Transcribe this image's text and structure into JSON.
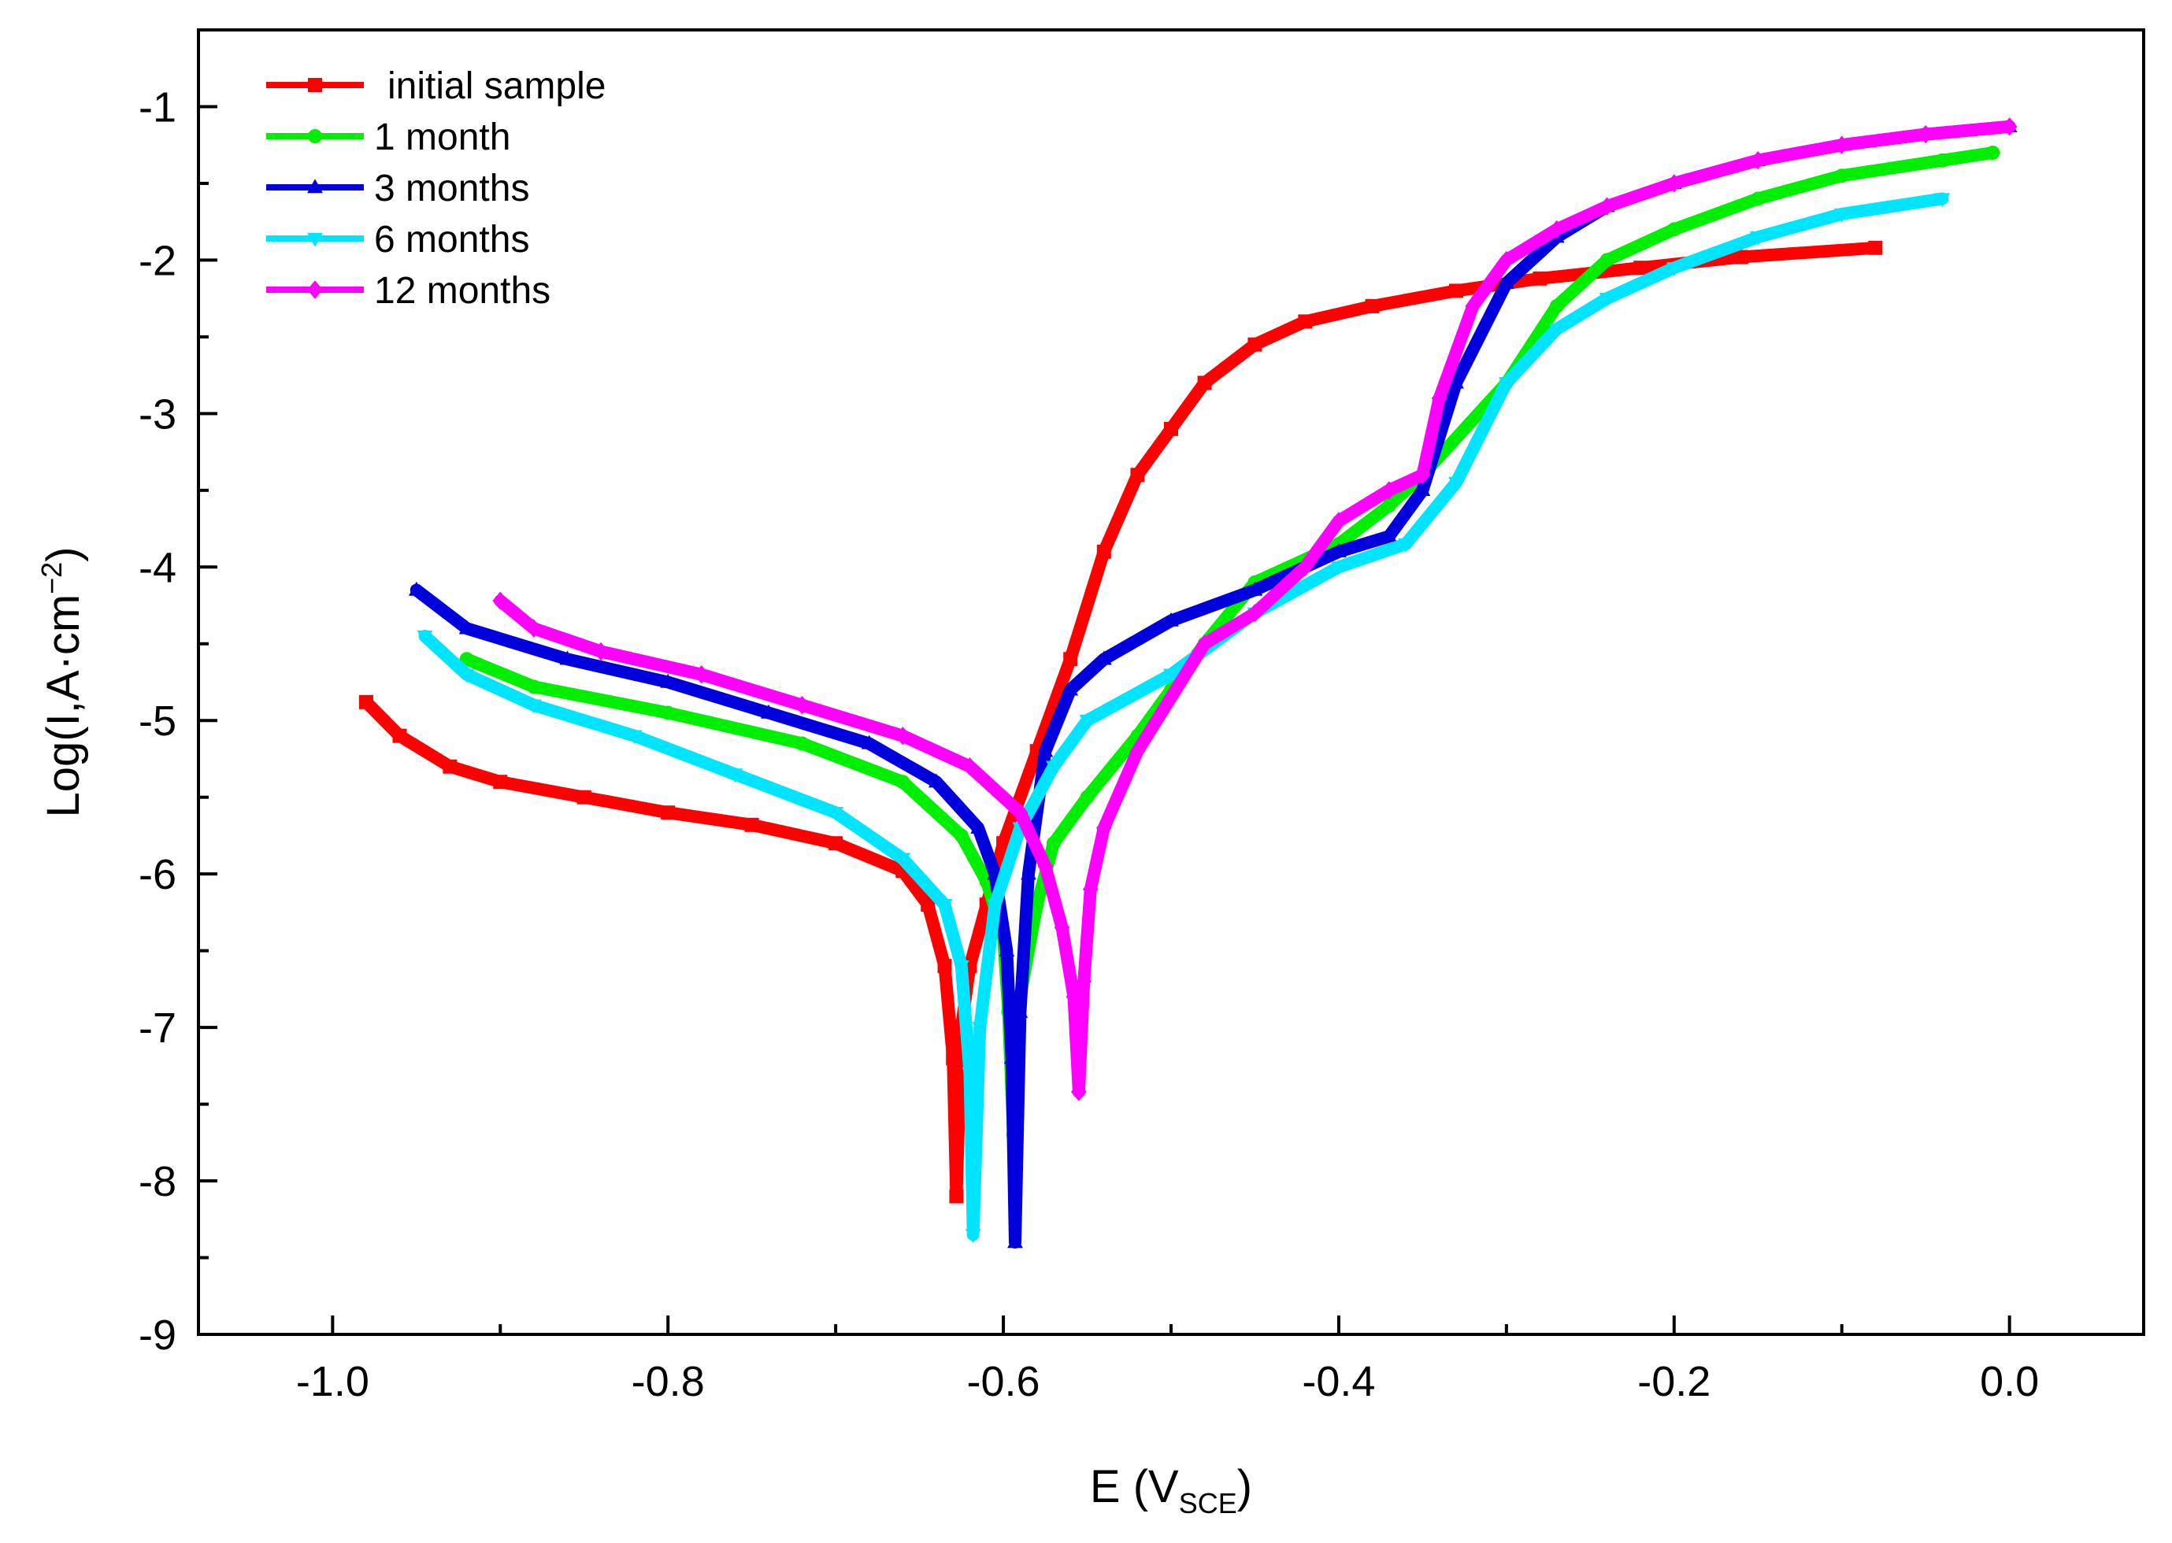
{
  "chart_data": {
    "type": "line",
    "title": "",
    "xlabel": "E (V",
    "xlabel_sub": "SCE",
    "xlabel_close": ")",
    "ylabel": "Log(I,A·cm",
    "ylabel_sup": "−2",
    "ylabel_close": ")",
    "xlim": [
      -1.08,
      0.08
    ],
    "ylim": [
      -9,
      -0.5
    ],
    "x_ticks": [
      -1.0,
      -0.8,
      -0.6,
      -0.4,
      -0.2,
      0.0
    ],
    "x_tick_labels": [
      "-1.0",
      "-0.8",
      "-0.6",
      "-0.4",
      "-0.2",
      "0.0"
    ],
    "y_ticks": [
      -9,
      -8,
      -7,
      -6,
      -5,
      -4,
      -3,
      -2,
      -1
    ],
    "y_tick_labels": [
      "-9",
      "-8",
      "-7",
      "-6",
      "-5",
      "-4",
      "-3",
      "-2",
      "-1"
    ],
    "grid": false,
    "legend_position": "top-left",
    "series": [
      {
        "name": "initial sample",
        "color": "#ff0000",
        "marker": "square",
        "x": [
          -0.98,
          -0.96,
          -0.93,
          -0.9,
          -0.85,
          -0.8,
          -0.75,
          -0.7,
          -0.66,
          -0.645,
          -0.635,
          -0.63,
          -0.628,
          -0.625,
          -0.62,
          -0.61,
          -0.6,
          -0.58,
          -0.56,
          -0.54,
          -0.52,
          -0.5,
          -0.48,
          -0.45,
          -0.42,
          -0.38,
          -0.33,
          -0.28,
          -0.22,
          -0.16,
          -0.08
        ],
        "values": [
          -4.88,
          -5.1,
          -5.3,
          -5.4,
          -5.5,
          -5.6,
          -5.68,
          -5.8,
          -5.98,
          -6.2,
          -6.6,
          -7.2,
          -8.1,
          -7.0,
          -6.6,
          -6.2,
          -5.8,
          -5.2,
          -4.6,
          -3.9,
          -3.4,
          -3.1,
          -2.8,
          -2.55,
          -2.4,
          -2.3,
          -2.2,
          -2.12,
          -2.05,
          -1.98,
          -1.92
        ]
      },
      {
        "name": "1 month",
        "color": "#00ee00",
        "marker": "circle",
        "x": [
          -0.92,
          -0.88,
          -0.8,
          -0.72,
          -0.66,
          -0.625,
          -0.61,
          -0.6,
          -0.597,
          -0.594,
          -0.59,
          -0.58,
          -0.57,
          -0.55,
          -0.52,
          -0.5,
          -0.48,
          -0.45,
          -0.4,
          -0.37,
          -0.35,
          -0.3,
          -0.27,
          -0.24,
          -0.2,
          -0.15,
          -0.1,
          -0.04,
          -0.01
        ],
        "values": [
          -4.6,
          -4.78,
          -4.95,
          -5.15,
          -5.4,
          -5.75,
          -6.05,
          -6.4,
          -6.9,
          -7.7,
          -6.8,
          -6.2,
          -5.8,
          -5.5,
          -5.1,
          -4.8,
          -4.5,
          -4.1,
          -3.85,
          -3.6,
          -3.4,
          -2.8,
          -2.3,
          -2.0,
          -1.8,
          -1.6,
          -1.45,
          -1.35,
          -1.3
        ]
      },
      {
        "name": "3 months",
        "color": "#0000dd",
        "marker": "triangle-up",
        "x": [
          -0.95,
          -0.92,
          -0.86,
          -0.8,
          -0.74,
          -0.68,
          -0.64,
          -0.615,
          -0.605,
          -0.598,
          -0.595,
          -0.593,
          -0.59,
          -0.585,
          -0.575,
          -0.56,
          -0.54,
          -0.5,
          -0.45,
          -0.4,
          -0.37,
          -0.35,
          -0.33,
          -0.3,
          -0.27,
          -0.24,
          -0.2,
          -0.15,
          -0.1,
          -0.05,
          0.0
        ],
        "values": [
          -4.15,
          -4.4,
          -4.6,
          -4.75,
          -4.95,
          -5.15,
          -5.4,
          -5.7,
          -6.0,
          -6.5,
          -7.2,
          -8.4,
          -6.9,
          -6.0,
          -5.2,
          -4.8,
          -4.6,
          -4.35,
          -4.15,
          -3.9,
          -3.8,
          -3.5,
          -2.8,
          -2.15,
          -1.85,
          -1.65,
          -1.5,
          -1.35,
          -1.25,
          -1.18,
          -1.13
        ]
      },
      {
        "name": "6 months",
        "color": "#00e5ff",
        "marker": "triangle-down",
        "x": [
          -0.945,
          -0.92,
          -0.88,
          -0.82,
          -0.76,
          -0.7,
          -0.66,
          -0.635,
          -0.625,
          -0.62,
          -0.618,
          -0.614,
          -0.605,
          -0.59,
          -0.57,
          -0.55,
          -0.5,
          -0.45,
          -0.4,
          -0.36,
          -0.33,
          -0.3,
          -0.27,
          -0.24,
          -0.2,
          -0.15,
          -0.1,
          -0.04
        ],
        "values": [
          -4.45,
          -4.7,
          -4.9,
          -5.1,
          -5.35,
          -5.6,
          -5.9,
          -6.2,
          -6.6,
          -7.3,
          -8.35,
          -7.0,
          -6.2,
          -5.7,
          -5.3,
          -5.0,
          -4.7,
          -4.3,
          -4.0,
          -3.85,
          -3.45,
          -2.8,
          -2.45,
          -2.25,
          -2.05,
          -1.85,
          -1.7,
          -1.6
        ]
      },
      {
        "name": "12 months",
        "color": "#ff00ff",
        "marker": "diamond",
        "x": [
          -0.9,
          -0.88,
          -0.84,
          -0.78,
          -0.72,
          -0.66,
          -0.62,
          -0.59,
          -0.575,
          -0.565,
          -0.558,
          -0.555,
          -0.552,
          -0.548,
          -0.54,
          -0.52,
          -0.5,
          -0.48,
          -0.45,
          -0.42,
          -0.4,
          -0.37,
          -0.35,
          -0.34,
          -0.32,
          -0.3,
          -0.27,
          -0.24,
          -0.2,
          -0.15,
          -0.1,
          -0.05,
          0.0
        ],
        "values": [
          -4.22,
          -4.4,
          -4.55,
          -4.7,
          -4.9,
          -5.1,
          -5.3,
          -5.6,
          -5.95,
          -6.35,
          -6.8,
          -7.42,
          -6.7,
          -6.1,
          -5.7,
          -5.2,
          -4.85,
          -4.5,
          -4.3,
          -4.0,
          -3.7,
          -3.5,
          -3.4,
          -2.9,
          -2.3,
          -2.0,
          -1.8,
          -1.65,
          -1.5,
          -1.35,
          -1.25,
          -1.18,
          -1.13
        ]
      }
    ]
  }
}
